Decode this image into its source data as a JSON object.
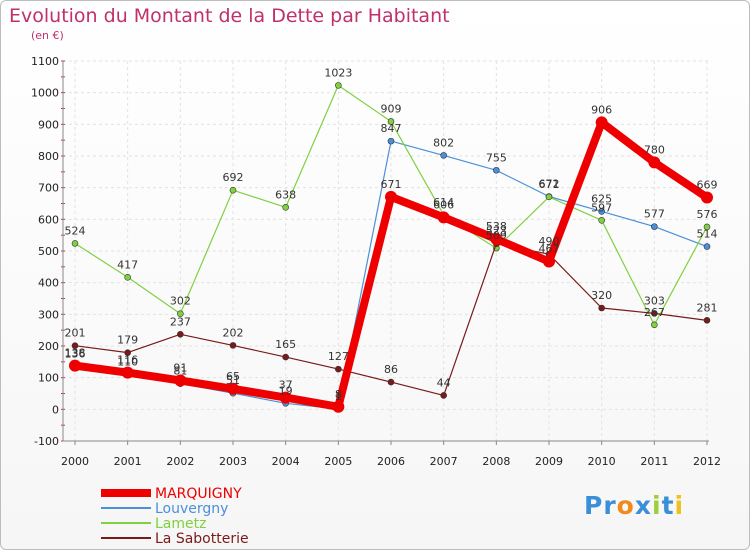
{
  "chart_data": {
    "type": "line",
    "title": "Evolution du Montant de la Dette par Habitant",
    "subtitle": "(en €)",
    "xlabel": "",
    "ylabel": "",
    "ylim": [
      -100,
      1100
    ],
    "yticks": [
      -100,
      0,
      100,
      200,
      300,
      400,
      500,
      600,
      700,
      800,
      900,
      1000,
      1100
    ],
    "x": [
      "2000",
      "2001",
      "2002",
      "2003",
      "2004",
      "2005",
      "2006",
      "2007",
      "2008",
      "2009",
      "2010",
      "2011",
      "2012"
    ],
    "grid": true,
    "legend_position": "bottom-left",
    "series": [
      {
        "name": "MARQUIGNY",
        "color": "#ee0000",
        "width": 8,
        "marker_r": 6,
        "values": [
          138,
          116,
          91,
          65,
          37,
          8,
          671,
          606,
          538,
          467,
          906,
          780,
          669
        ]
      },
      {
        "name": "Louvergny",
        "color": "#4a90d9",
        "width": 1.2,
        "marker_r": 3,
        "values": [
          136,
          110,
          81,
          51,
          19,
          1,
          847,
          802,
          755,
          672,
          625,
          577,
          514
        ]
      },
      {
        "name": "Lametz",
        "color": "#80d040",
        "width": 1.2,
        "marker_r": 3,
        "values": [
          524,
          417,
          302,
          692,
          638,
          1023,
          909,
          614,
          509,
          671,
          597,
          267,
          576
        ]
      },
      {
        "name": "La Sabotterie",
        "color": "#7a1a1a",
        "width": 1.2,
        "marker_r": 3,
        "values": [
          201,
          179,
          237,
          202,
          165,
          127,
          86,
          44,
          523,
          490,
          320,
          303,
          281
        ]
      }
    ]
  },
  "logo": {
    "text": "Proxiti",
    "letters": [
      {
        "ch": "P",
        "color": "#3a8fd8"
      },
      {
        "ch": "r",
        "color": "#3a8fd8"
      },
      {
        "ch": "o",
        "color": "#f08a1c"
      },
      {
        "ch": "x",
        "color": "#3a8fd8"
      },
      {
        "ch": "i",
        "color": "#9bd03a"
      },
      {
        "ch": "t",
        "color": "#3a8fd8"
      },
      {
        "ch": "i",
        "color": "#f0c020"
      }
    ]
  }
}
